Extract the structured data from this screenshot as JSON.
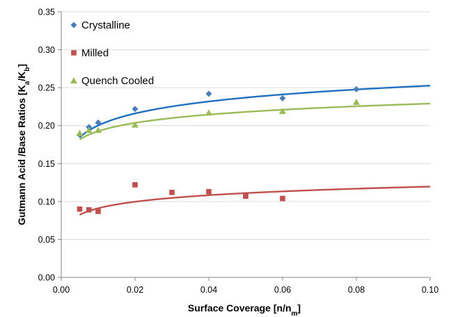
{
  "chart_data": {
    "type": "scatter",
    "xlabel": "Surface Coverage [n/n",
    "xlabel_sub": "m",
    "xlabel_end": "]",
    "ylabel": "Gutmann Acid /Base Ratios [K",
    "ylabel_sub1": "a",
    "ylabel_mid": "/K",
    "ylabel_sub2": "b",
    "ylabel_end": "]",
    "xlim": [
      0,
      0.1
    ],
    "ylim": [
      0,
      0.35
    ],
    "x_ticks": [
      "0.00",
      "0.02",
      "0.04",
      "0.06",
      "0.08",
      "0.10"
    ],
    "y_ticks": [
      "0.00",
      "0.05",
      "0.10",
      "0.15",
      "0.20",
      "0.25",
      "0.30",
      "0.35"
    ],
    "x_tick_values": [
      0,
      0.02,
      0.04,
      0.06,
      0.08,
      0.1
    ],
    "y_tick_values": [
      0,
      0.05,
      0.1,
      0.15,
      0.2,
      0.25,
      0.3,
      0.35
    ],
    "grid": "horizontal",
    "legend_position": "top-left",
    "series": [
      {
        "name": "Crystalline",
        "marker": "diamond",
        "color": "#4a7ebb",
        "line_color": "#1f6fc0",
        "x": [
          0.005,
          0.0075,
          0.01,
          0.02,
          0.04,
          0.06,
          0.08
        ],
        "y": [
          0.188,
          0.198,
          0.204,
          0.222,
          0.242,
          0.236,
          0.248
        ],
        "trend": {
          "a": 0.3052,
          "b": 0.0228
        }
      },
      {
        "name": "Milled",
        "marker": "square",
        "color": "#c0504d",
        "line_color": "#c0504d",
        "x": [
          0.005,
          0.0075,
          0.01,
          0.02,
          0.03,
          0.04,
          0.05,
          0.06
        ],
        "y": [
          0.09,
          0.089,
          0.087,
          0.122,
          0.112,
          0.113,
          0.107,
          0.104
        ],
        "trend": {
          "a": 0.1482,
          "b": 0.0124
        }
      },
      {
        "name": "Quench Cooled",
        "marker": "triangle",
        "color": "#9bbb59",
        "line_color": "#9bbb59",
        "x": [
          0.005,
          0.0075,
          0.01,
          0.02,
          0.04,
          0.06,
          0.08
        ],
        "y": [
          0.19,
          0.194,
          0.194,
          0.201,
          0.217,
          0.219,
          0.231
        ],
        "trend": {
          "a": 0.2654,
          "b": 0.0158
        }
      }
    ]
  }
}
